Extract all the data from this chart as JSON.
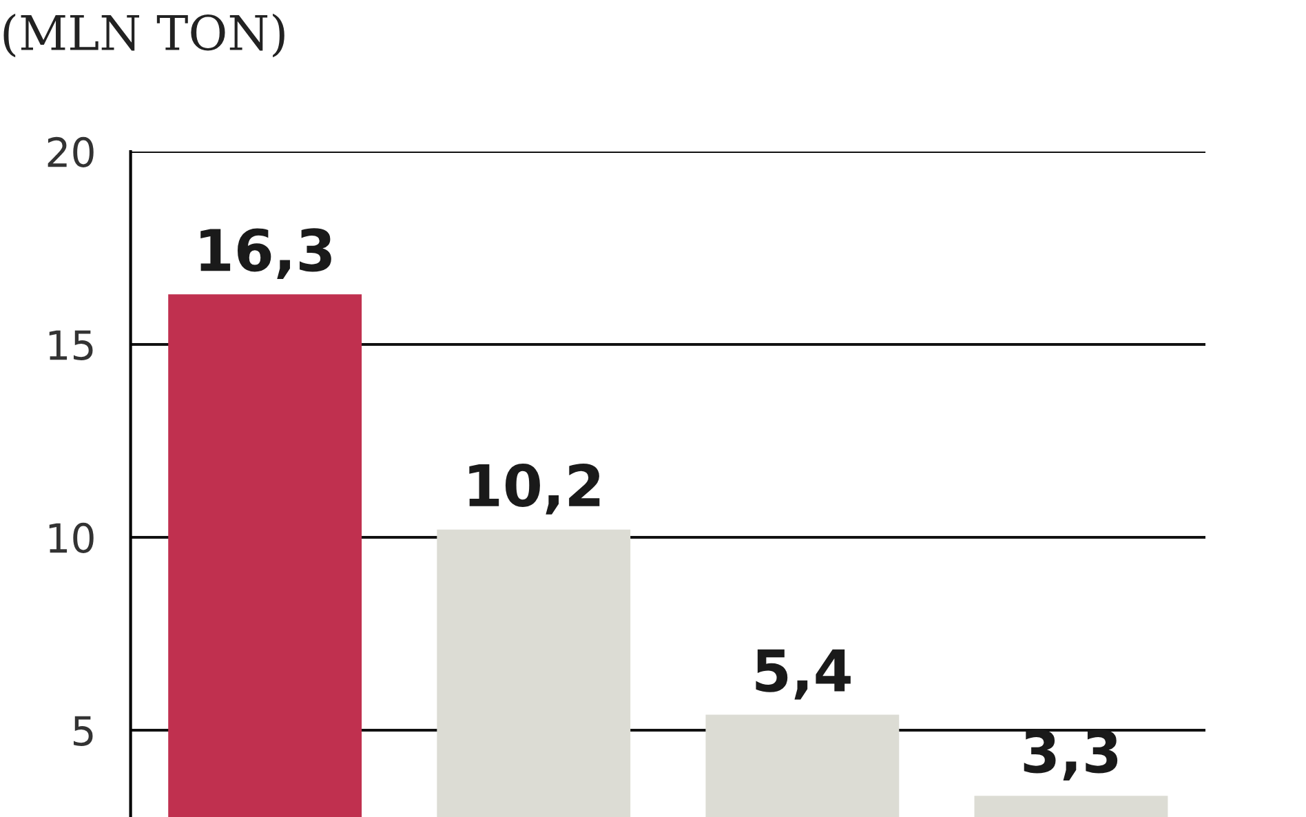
{
  "chart_data": {
    "type": "bar",
    "title": "(MLN TON)",
    "categories": [
      null,
      null,
      null,
      null
    ],
    "values": [
      16.3,
      10.2,
      5.4,
      3.3
    ],
    "colors": [
      "#c0304f",
      "#dcdcd4",
      "#dcdcd4",
      "#dcdcd4"
    ],
    "value_labels": [
      "16,3",
      "10,2",
      "5,4",
      "3,3"
    ],
    "ylim": [
      2.75,
      20
    ],
    "yticks": [
      5,
      10,
      15,
      20
    ],
    "grid": "y",
    "legend": false
  }
}
